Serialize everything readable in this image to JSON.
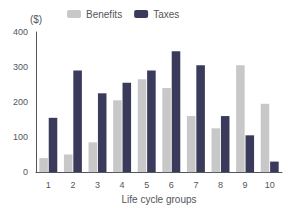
{
  "chart_data": {
    "type": "bar",
    "categories": [
      1,
      2,
      3,
      4,
      5,
      6,
      7,
      8,
      9,
      10
    ],
    "series": [
      {
        "name": "Benefits",
        "color": "#c8c8c8",
        "values": [
          40,
          50,
          85,
          205,
          265,
          240,
          160,
          125,
          305,
          195
        ]
      },
      {
        "name": "Taxes",
        "color": "#3a3a5a",
        "values": [
          155,
          290,
          225,
          255,
          290,
          345,
          305,
          160,
          105,
          30
        ]
      }
    ],
    "xlabel": "Life cycle groups",
    "ylabel": "($)",
    "ylim": [
      0,
      400
    ],
    "yticks": [
      0,
      100,
      200,
      300,
      400
    ],
    "grid": false,
    "legend": "upper left"
  }
}
